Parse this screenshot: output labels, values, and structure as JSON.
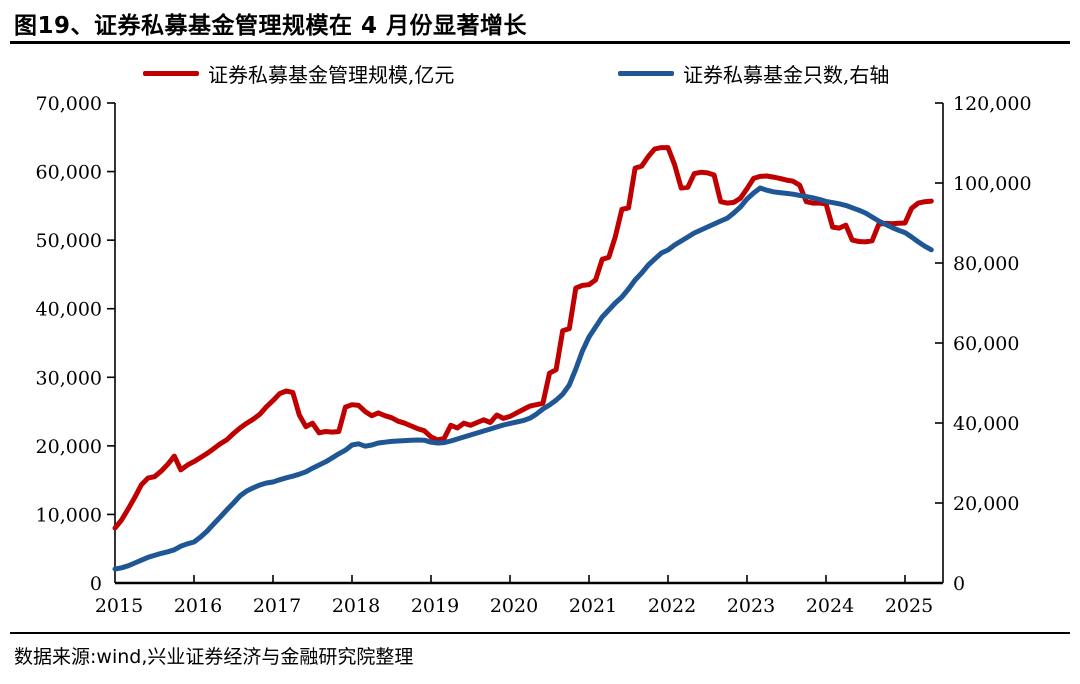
{
  "page": {
    "title": "图19、证券私募基金管理规模在 4 月份显著增长",
    "source": "数据来源:wind,兴业证券经济与金融研究院整理"
  },
  "chart_data": {
    "type": "line",
    "title": "图19、证券私募基金管理规模在 4 月份显著增长",
    "x_unit": "month",
    "x_start": "2015-01",
    "x_end": "2025-05",
    "x_tick_labels": [
      "2015",
      "2016",
      "2017",
      "2018",
      "2019",
      "2020",
      "2021",
      "2022",
      "2023",
      "2024",
      "2025"
    ],
    "grid": false,
    "legend_position": "top",
    "left_axis": {
      "min": 0,
      "max": 70000,
      "ticks": [
        0,
        10000,
        20000,
        30000,
        40000,
        50000,
        60000,
        70000
      ]
    },
    "right_axis": {
      "min": 0,
      "max": 120000,
      "ticks": [
        0,
        20000,
        40000,
        60000,
        80000,
        100000,
        120000
      ]
    },
    "colors": {
      "red_series": "#C00000",
      "blue_series": "#1F5795",
      "axis": "#000000"
    },
    "legend": [
      {
        "label": "证券私募基金管理规模,亿元",
        "color": "#C00000"
      },
      {
        "label": "证券私募基金只数,右轴",
        "color": "#1F5795"
      }
    ],
    "series": [
      {
        "name": "证券私募基金管理规模,亿元",
        "axis": "left",
        "color": "#C00000",
        "values": [
          8000,
          9200,
          10800,
          12500,
          14300,
          15300,
          15500,
          16300,
          17300,
          18500,
          16500,
          17200,
          17700,
          18300,
          18900,
          19600,
          20300,
          20900,
          21800,
          22600,
          23300,
          23900,
          24600,
          25700,
          26600,
          27600,
          28000,
          27800,
          24500,
          22800,
          23300,
          21900,
          22100,
          22000,
          22100,
          25650,
          26000,
          25900,
          25000,
          24400,
          24800,
          24400,
          24100,
          23600,
          23300,
          22900,
          22500,
          22200,
          21300,
          20850,
          21100,
          23000,
          22600,
          23300,
          23000,
          23400,
          23800,
          23400,
          24500,
          24000,
          24300,
          24800,
          25300,
          25800,
          26000,
          26200,
          30600,
          31100,
          36800,
          37100,
          43000,
          43400,
          43500,
          44200,
          47200,
          47500,
          50500,
          54500,
          54700,
          60500,
          60800,
          62200,
          63300,
          63500,
          63500,
          61000,
          57600,
          57700,
          59700,
          59900,
          59800,
          59500,
          55600,
          55400,
          55500,
          56100,
          57500,
          59000,
          59300,
          59350,
          59200,
          59000,
          58750,
          58600,
          58000,
          55600,
          55400,
          55400,
          55300,
          51900,
          51750,
          52200,
          50000,
          49800,
          49750,
          49900,
          52300,
          52450,
          52400,
          52450,
          52500,
          54650,
          55400,
          55600,
          55700
        ]
      },
      {
        "name": "证券私募基金只数,右轴",
        "axis": "right",
        "color": "#1F5795",
        "values": [
          3500,
          3800,
          4300,
          5000,
          5700,
          6400,
          6900,
          7400,
          7800,
          8300,
          9200,
          9800,
          10250,
          11500,
          13000,
          14800,
          16500,
          18300,
          20000,
          21800,
          23000,
          23800,
          24500,
          25000,
          25250,
          25800,
          26300,
          26700,
          27200,
          27800,
          28700,
          29500,
          30300,
          31300,
          32300,
          33200,
          34500,
          34800,
          34200,
          34500,
          35000,
          35200,
          35400,
          35500,
          35600,
          35700,
          35750,
          35700,
          35200,
          35000,
          35100,
          35500,
          36000,
          36500,
          37000,
          37500,
          38000,
          38500,
          39000,
          39500,
          39900,
          40250,
          40600,
          41200,
          42200,
          43500,
          44500,
          45700,
          47200,
          49500,
          53500,
          58000,
          61500,
          64000,
          66500,
          68250,
          70000,
          71500,
          73500,
          75750,
          77500,
          79500,
          81000,
          82500,
          83250,
          84500,
          85500,
          86500,
          87500,
          88250,
          89000,
          89750,
          90500,
          91200,
          92500,
          94000,
          96000,
          97500,
          98750,
          98200,
          97800,
          97600,
          97400,
          97200,
          96900,
          96600,
          96300,
          95900,
          95400,
          95100,
          94800,
          94400,
          93800,
          93200,
          92500,
          91500,
          90500,
          89700,
          88900,
          88200,
          87600,
          86500,
          85300,
          84200,
          83300
        ]
      }
    ],
    "source": "数据来源:wind,兴业证券经济与金融研究院整理"
  }
}
